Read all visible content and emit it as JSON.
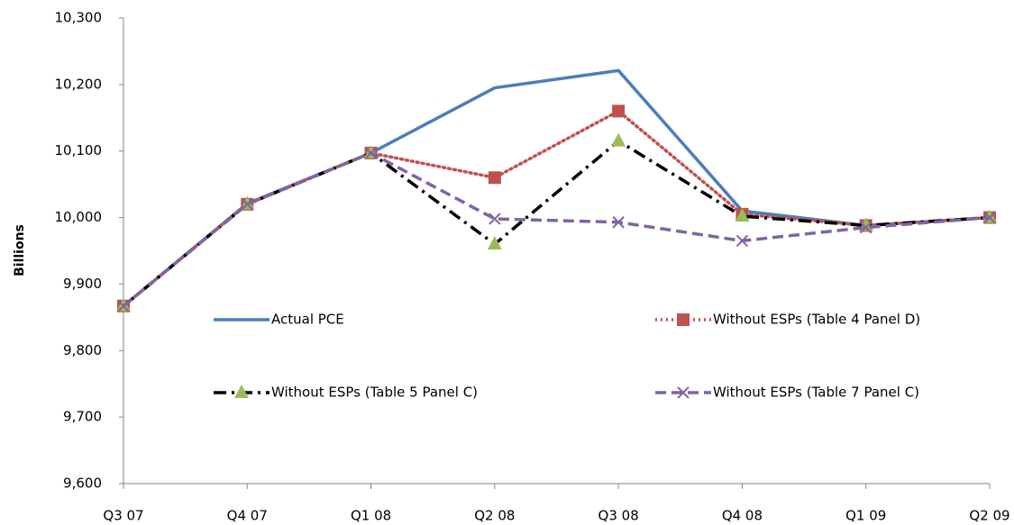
{
  "chart_data": {
    "type": "line",
    "y_label": "Billions",
    "categories": [
      "Q3 07",
      "Q4 07",
      "Q1 08",
      "Q2 08",
      "Q3 08",
      "Q4 08",
      "Q1 09",
      "Q2 09"
    ],
    "series": [
      {
        "name": "Actual PCE",
        "color": "#4a7ebb",
        "dash": "solid",
        "marker": "none",
        "values": [
          9867,
          10021,
          10097,
          10195,
          10221,
          10010,
          9988,
          10000
        ]
      },
      {
        "name": "Without ESPs (Table 4 Panel D)",
        "color": "#c0504d",
        "dash": "dotted",
        "marker": "square",
        "values": [
          9867,
          10020,
          10097,
          10060,
          10160,
          10005,
          9988,
          10000
        ]
      },
      {
        "name": "Without ESPs (Table 5 Panel C)",
        "color": "#000000",
        "dash": "dashdot",
        "marker": "triangle",
        "marker_color": "#9bbb59",
        "values": [
          9867,
          10020,
          10097,
          9960,
          10115,
          10002,
          9988,
          10000
        ]
      },
      {
        "name": "Without ESPs (Table 7 Panel C)",
        "color": "#8064a2",
        "dash": "dashed",
        "marker": "cross",
        "values": [
          9867,
          10020,
          10097,
          9998,
          9993,
          9965,
          9985,
          10000
        ]
      }
    ],
    "ylim": [
      9600,
      10300
    ],
    "yticks": [
      {
        "value": 9600,
        "label": "9,600"
      },
      {
        "value": 9700,
        "label": "9,700"
      },
      {
        "value": 9800,
        "label": "9,800"
      },
      {
        "value": 9900,
        "label": "9,900"
      },
      {
        "value": 10000,
        "label": "10,000"
      },
      {
        "value": 10100,
        "label": "10,100"
      },
      {
        "value": 10200,
        "label": "10,200"
      },
      {
        "value": 10300,
        "label": "10,300"
      }
    ],
    "grid": false
  }
}
